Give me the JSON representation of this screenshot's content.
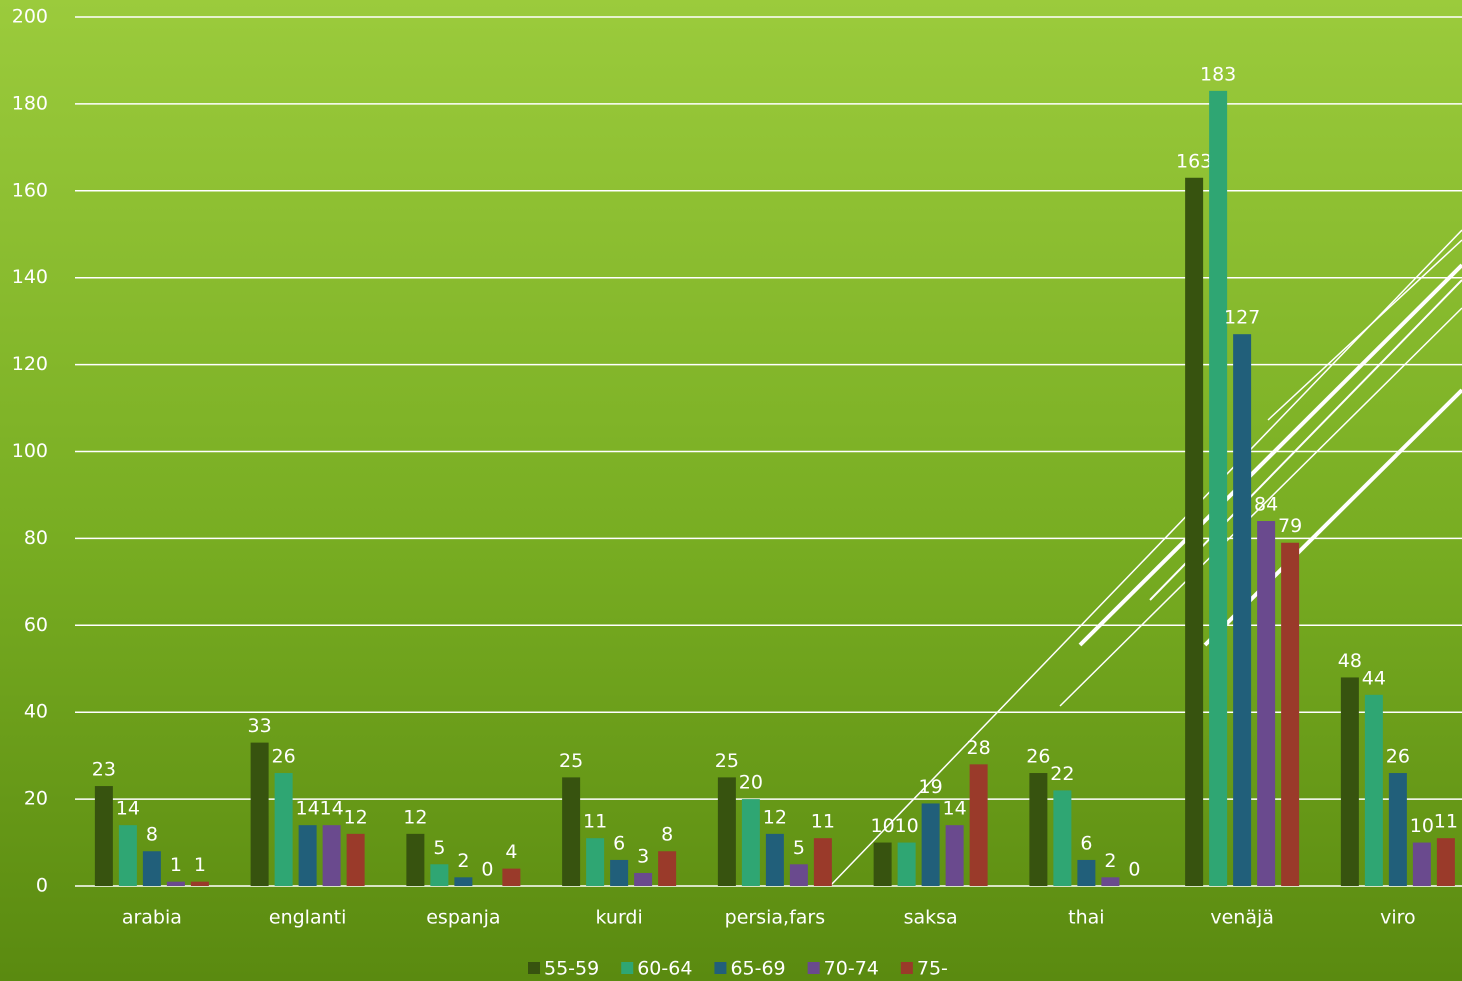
{
  "chart_data": {
    "type": "bar",
    "categories": [
      "arabia",
      "englanti",
      "espanja",
      "kurdi",
      "persia,fars",
      "saksa",
      "thai",
      "venäjä",
      "viro"
    ],
    "series": [
      {
        "name": "55-59",
        "color": "#37530f",
        "values": [
          23,
          33,
          12,
          25,
          25,
          10,
          26,
          163,
          48
        ]
      },
      {
        "name": "60-64",
        "color": "#2fa673",
        "values": [
          14,
          26,
          5,
          11,
          20,
          10,
          22,
          183,
          44
        ]
      },
      {
        "name": "65-69",
        "color": "#215f7a",
        "values": [
          8,
          14,
          2,
          6,
          12,
          19,
          6,
          127,
          26
        ]
      },
      {
        "name": "70-74",
        "color": "#6a4a8e",
        "values": [
          1,
          14,
          0,
          3,
          5,
          14,
          2,
          84,
          10
        ]
      },
      {
        "name": "75-",
        "color": "#9a3a2a",
        "values": [
          1,
          12,
          4,
          8,
          11,
          28,
          0,
          79,
          11
        ]
      }
    ],
    "ylim": [
      0,
      200
    ],
    "yticks": [
      0,
      20,
      40,
      60,
      80,
      100,
      120,
      140,
      160,
      180,
      200
    ],
    "grid": true,
    "legend": "bottom"
  }
}
